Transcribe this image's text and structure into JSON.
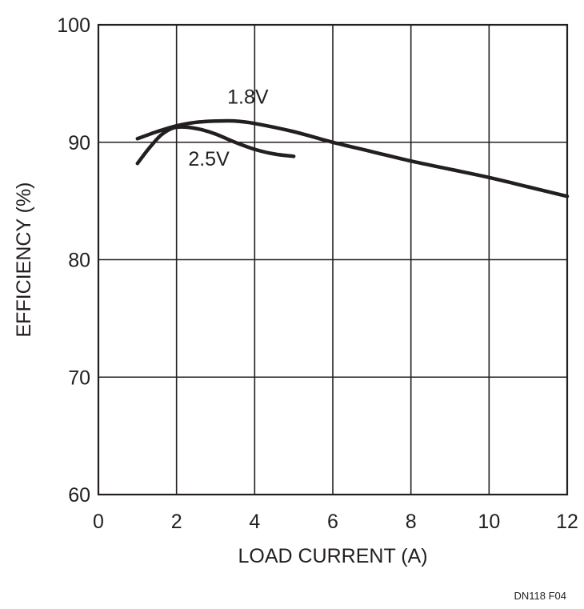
{
  "chart_data": {
    "type": "line",
    "title": "",
    "xlabel": "LOAD CURRENT (A)",
    "ylabel": "EFFICIENCY (%)",
    "xlim": [
      0,
      12
    ],
    "ylim": [
      60,
      100
    ],
    "xticks": [
      0,
      2,
      4,
      6,
      8,
      10,
      12
    ],
    "yticks": [
      60,
      70,
      80,
      90,
      100
    ],
    "grid": true,
    "legend": "inline",
    "series": [
      {
        "name": "1.8V",
        "x": [
          1.0,
          1.5,
          2.0,
          2.5,
          3.0,
          3.5,
          4.0,
          5.0,
          6.0,
          7.0,
          8.0,
          9.0,
          10.0,
          11.0,
          12.0
        ],
        "y": [
          90.3,
          90.9,
          91.4,
          91.7,
          91.8,
          91.8,
          91.6,
          90.9,
          90.0,
          89.2,
          88.4,
          87.7,
          87.0,
          86.2,
          85.4
        ]
      },
      {
        "name": "2.5V",
        "x": [
          1.0,
          1.3,
          1.6,
          1.9,
          2.2,
          2.6,
          3.0,
          3.5,
          4.0,
          4.5,
          5.0
        ],
        "y": [
          88.2,
          89.5,
          90.6,
          91.2,
          91.3,
          91.1,
          90.7,
          90.0,
          89.4,
          89.0,
          88.8
        ]
      }
    ]
  },
  "figure_id": "DN118 F04"
}
